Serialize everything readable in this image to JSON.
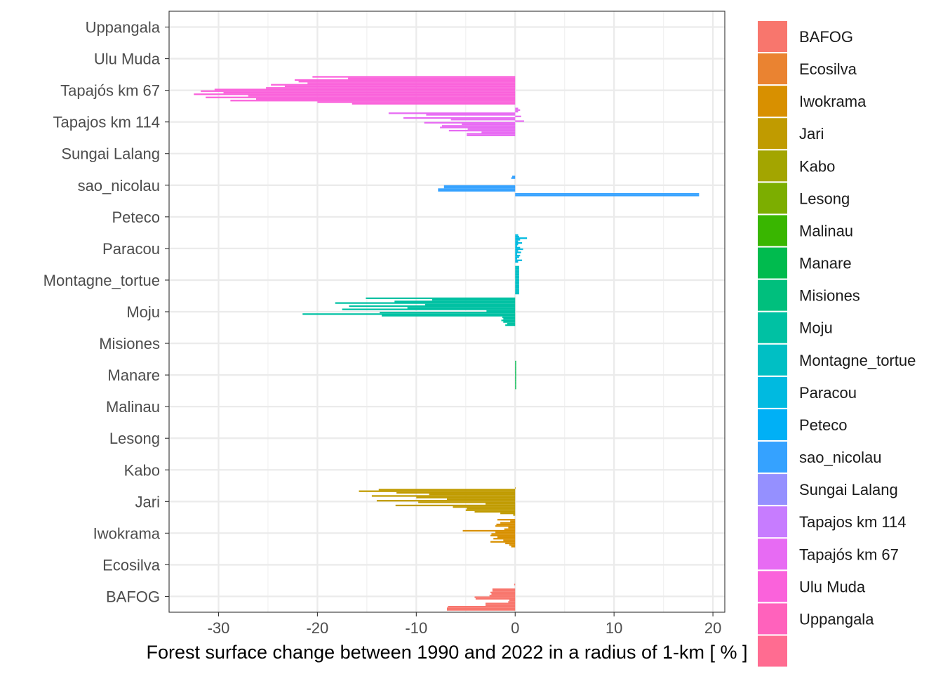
{
  "chart_data": {
    "type": "bar",
    "orientation": "horizontal",
    "xlabel": "Forest surface change between 1990 and 2022 in a radius of 1-km [ % ]",
    "ylabel": "",
    "xlim": [
      -35,
      21.2
    ],
    "xticks": [
      -30,
      -20,
      -10,
      0,
      10,
      20
    ],
    "grid": true,
    "legend_position": "right",
    "sites": [
      "BAFOG",
      "Ecosilva",
      "Iwokrama",
      "Jari",
      "Kabo",
      "Lesong",
      "Malinau",
      "Manare",
      "Misiones",
      "Moju",
      "Montagne_tortue",
      "Paracou",
      "Peteco",
      "sao_nicolau",
      "Sungai Lalang",
      "Tapajos km 114",
      "Tapajós km 67",
      "Ulu Muda",
      "Uppangala"
    ],
    "colors": [
      "#F8766D",
      "#EA8331",
      "#D89000",
      "#C09B00",
      "#A3A500",
      "#7CAE00",
      "#39B600",
      "#00BB4E",
      "#00BF7D",
      "#00C1A3",
      "#00BFC4",
      "#00BAE0",
      "#00B0F6",
      "#35A2FF",
      "#9590FF",
      "#C77CFF",
      "#E76BF3",
      "#FA62DB",
      "#FF62BC",
      "#FF6C91"
    ],
    "color_by_site": {
      "BAFOG": "#F8766D",
      "Ecosilva": "#EA8331",
      "Iwokrama": "#D89000",
      "Jari": "#C09B00",
      "Kabo": "#A3A500",
      "Lesong": "#7CAE00",
      "Malinau": "#39B600",
      "Manare": "#00BB4E",
      "Misiones": "#00BF7D",
      "Moju": "#00C1A3",
      "Montagne_tortue": "#00BFC4",
      "Paracou": "#00BAE0",
      "Peteco": "#00B0F6",
      "sao_nicolau": "#35A2FF",
      "Sungai Lalang": "#9590FF",
      "Tapajos km 114": "#E76BF3",
      "Tapajós km 67": "#FA62DB",
      "Ulu Muda": "#FF62BC",
      "Uppangala": "#FF6C91"
    },
    "series": [
      {
        "site": "BAFOG",
        "values": [
          0,
          -0.1,
          0,
          0,
          -2.3,
          -2.3,
          -2.5,
          -2.4,
          -2.6,
          -4.1,
          -4.0,
          -0.6,
          -0.7,
          -3.0,
          -3.0,
          -6.8,
          -6.9,
          -6.9
        ]
      },
      {
        "site": "Ecosilva",
        "values": []
      },
      {
        "site": "Iwokrama",
        "values": [
          -1.8,
          -0.5,
          -1.5,
          -1.9,
          -2.0,
          -0.7,
          -1.1,
          -5.3,
          -2.0,
          -2.4,
          -2.5,
          -1.8,
          -2.2,
          -1.2,
          -2.5,
          -1.0,
          -0.6,
          -0.4
        ]
      },
      {
        "site": "Jari",
        "values": [
          0.05,
          -13.8,
          -15.8,
          -12.0,
          -8.7,
          -14.5,
          -10.0,
          -6.9,
          -14.0,
          -9.8,
          -3.0,
          -12.1,
          -6.3,
          -4.9,
          -5.0,
          -4.1,
          -1.5,
          -0.2
        ]
      },
      {
        "site": "Kabo",
        "values": []
      },
      {
        "site": "Lesong",
        "values": []
      },
      {
        "site": "Malinau",
        "values": []
      },
      {
        "site": "Manare",
        "values": [
          0.1,
          0.1,
          0.1,
          0.1,
          0.1,
          0.1,
          0.1,
          0.1,
          0.1,
          0.1,
          0.1,
          0.1,
          0.1,
          0.1,
          0.1,
          0.1,
          0.1,
          0.1
        ]
      },
      {
        "site": "Misiones",
        "values": []
      },
      {
        "site": "Moju",
        "values": [
          -15.1,
          -8.4,
          -12.2,
          -18.2,
          -9.1,
          -16.8,
          -10.9,
          -17.5,
          -2.9,
          -13.7,
          -21.5,
          -13.5,
          -1.3,
          -1.2,
          -1.4,
          -1.2,
          -0.8,
          -1.0
        ]
      },
      {
        "site": "Montagne_tortue",
        "values": [
          0.4,
          0.4,
          0.4,
          0.4,
          0.4,
          0.4,
          0.4,
          0.4,
          0.4,
          0.4,
          0.4,
          0.4,
          0.4,
          0.4,
          0.4,
          0.4,
          0.4,
          0.4
        ]
      },
      {
        "site": "Paracou",
        "values": [
          0.3,
          0.4,
          1.2,
          0.5,
          0.3,
          0.7,
          0.3,
          0.2,
          0.5,
          0.8,
          0.3,
          0.6,
          0.2,
          0.5,
          0.4,
          0.2,
          0.7,
          0.3
        ]
      },
      {
        "site": "Peteco",
        "values": []
      },
      {
        "site": "sao_nicolau",
        "values": [
          0,
          0,
          0,
          -0.3,
          -0.4,
          0,
          0,
          0,
          0,
          -7.2,
          -7.2,
          -7.8,
          -7.8,
          0,
          18.6,
          18.6,
          0,
          0
        ]
      },
      {
        "site": "Sungai Lalang",
        "values": []
      },
      {
        "site": "Tapajos km 114",
        "values": [
          0.3,
          0.5,
          0.3,
          -12.8,
          -9.0,
          0.6,
          -11.3,
          -6.5,
          0.9,
          -9.2,
          -5.4,
          -7.4,
          -7.6,
          -4.8,
          -6.7,
          -3.4,
          -4.9,
          -4.9
        ]
      },
      {
        "site": "Tapajós km 67",
        "values": [
          -20.5,
          -16.9,
          -22.3,
          -21.9,
          -21.0,
          -24.7,
          -23.3,
          -25.2,
          -30.4,
          -31.8,
          -29.5,
          -32.5,
          -27.0,
          -31.3,
          -26.2,
          -28.8,
          -20.0,
          -16.5
        ]
      },
      {
        "site": "Ulu Muda",
        "values": []
      },
      {
        "site": "Uppangala",
        "values": []
      }
    ]
  }
}
